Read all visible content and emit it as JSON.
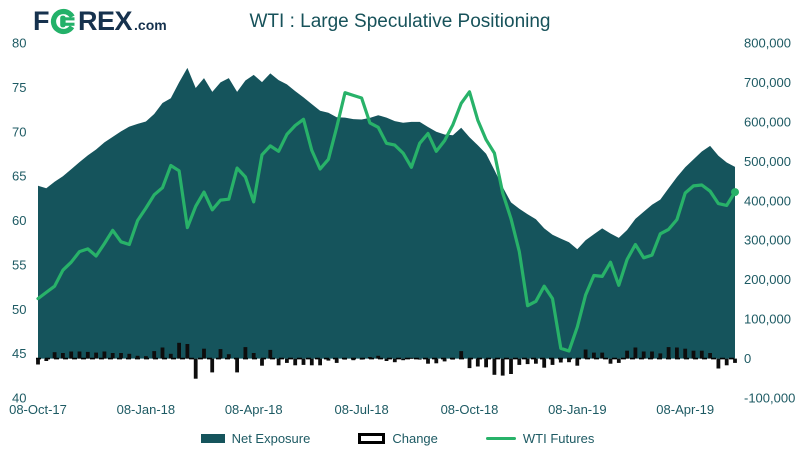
{
  "header": {
    "logo": {
      "f": "F",
      "rex": "REX",
      "com": ".com"
    },
    "title": "WTI : Large Speculative Positioning"
  },
  "colors": {
    "area": "#15545c",
    "line": "#28b269",
    "bars": "#0d0d0d",
    "axis_text": "#1d5a63",
    "title_text": "#17525a",
    "logo_navy": "#16324e",
    "logo_green": "#23b169",
    "background": "#ffffff"
  },
  "legend": [
    {
      "label": "Net Exposure",
      "type": "area"
    },
    {
      "label": "Change",
      "type": "bar"
    },
    {
      "label": "WTI Futures",
      "type": "line"
    }
  ],
  "chart_data": {
    "type": "mixed",
    "frequency": "weekly",
    "x_tick_labels": [
      "08-Oct-17",
      "08-Jan-18",
      "08-Apr-18",
      "08-Jul-18",
      "08-Oct-18",
      "08-Jan-19",
      "08-Apr-19"
    ],
    "x_tick_indices": [
      0,
      13,
      26,
      39,
      52,
      65,
      78
    ],
    "left_axis": {
      "label": "",
      "min": 40,
      "max": 80,
      "ticks": [
        80,
        75,
        70,
        65,
        60,
        55,
        50,
        45,
        40
      ]
    },
    "right_axis": {
      "label": "",
      "min": -100000,
      "max": 800000,
      "ticks": [
        800000,
        700000,
        600000,
        500000,
        400000,
        300000,
        200000,
        100000,
        0,
        -100000
      ],
      "tick_labels": [
        "800,000",
        "700,000",
        "600,000",
        "500,000",
        "400,000",
        "300,000",
        "200,000",
        "100,000",
        "0",
        "-100,000"
      ]
    },
    "grid": false,
    "zero_line": "dashed",
    "legend_position": "bottom",
    "series": [
      {
        "name": "Net Exposure",
        "type": "area",
        "axis": "right",
        "values": [
          438000,
          432000,
          448000,
          462000,
          480000,
          498000,
          515000,
          530000,
          548000,
          562000,
          576000,
          588000,
          595000,
          601000,
          620000,
          648000,
          660000,
          700000,
          737000,
          686000,
          711000,
          676000,
          700000,
          711000,
          676000,
          705000,
          719000,
          701000,
          723000,
          706000,
          695000,
          678000,
          662000,
          645000,
          628000,
          623000,
          612000,
          611000,
          607000,
          606000,
          610000,
          617000,
          611000,
          602000,
          598000,
          600000,
          600000,
          587000,
          575000,
          568000,
          566000,
          585000,
          561000,
          541000,
          519000,
          478000,
          435000,
          396000,
          380000,
          366000,
          353000,
          330000,
          314000,
          304000,
          295000,
          277000,
          300000,
          315000,
          330000,
          317000,
          306000,
          326000,
          354000,
          372000,
          390000,
          403000,
          432000,
          460000,
          485000,
          505000,
          525000,
          539000,
          514000,
          497000,
          486000
        ]
      },
      {
        "name": "Change",
        "type": "bar",
        "axis": "right",
        "values": [
          -15000,
          -6000,
          16000,
          14000,
          18000,
          18000,
          17000,
          15000,
          18000,
          14000,
          14000,
          12000,
          7000,
          6000,
          19000,
          28000,
          12000,
          40000,
          37000,
          -51000,
          25000,
          -35000,
          24000,
          11000,
          -35000,
          29000,
          14000,
          -18000,
          22000,
          -17000,
          -11000,
          -17000,
          -16000,
          -17000,
          -17000,
          -5000,
          -11000,
          -1000,
          -4000,
          -1000,
          4000,
          7000,
          -6000,
          -9000,
          -4000,
          2000,
          0,
          -13000,
          -12000,
          -7000,
          -2000,
          19000,
          -24000,
          -20000,
          -22000,
          -41000,
          -43000,
          -39000,
          -16000,
          -14000,
          -13000,
          -23000,
          -16000,
          -10000,
          -9000,
          -18000,
          23000,
          15000,
          15000,
          -13000,
          -11000,
          20000,
          28000,
          18000,
          18000,
          13000,
          29000,
          28000,
          25000,
          20000,
          20000,
          14000,
          -25000,
          -17000,
          -11000
        ]
      },
      {
        "name": "WTI Futures",
        "type": "line",
        "axis": "left",
        "values": [
          51.2,
          51.9,
          52.6,
          54.4,
          55.3,
          56.5,
          56.8,
          56.0,
          57.4,
          58.9,
          57.6,
          57.3,
          60.0,
          61.4,
          62.9,
          63.7,
          66.2,
          65.6,
          59.2,
          61.6,
          63.2,
          61.2,
          62.3,
          62.4,
          65.9,
          64.9,
          62.1,
          67.4,
          68.4,
          67.8,
          69.7,
          70.7,
          71.4,
          67.9,
          65.8,
          66.9,
          70.5,
          74.4,
          74.1,
          73.8,
          71.0,
          70.5,
          68.7,
          68.5,
          67.6,
          66.0,
          68.7,
          69.8,
          67.8,
          69.0,
          70.8,
          73.2,
          74.5,
          71.3,
          69.1,
          67.6,
          63.1,
          60.2,
          56.5,
          50.4,
          50.9,
          52.6,
          51.2,
          45.6,
          45.3,
          48.0,
          51.6,
          53.8,
          53.7,
          55.3,
          52.7,
          55.6,
          57.3,
          55.8,
          56.1,
          58.5,
          59.0,
          60.1,
          63.1,
          63.9,
          64.0,
          63.3,
          61.9,
          61.7,
          63.2
        ]
      }
    ]
  }
}
